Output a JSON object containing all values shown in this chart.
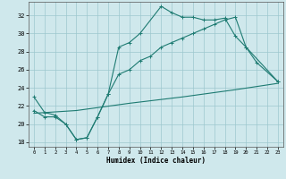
{
  "xlabel": "Humidex (Indice chaleur)",
  "xlim": [
    -0.5,
    23.5
  ],
  "ylim": [
    17.5,
    33.5
  ],
  "yticks": [
    18,
    20,
    22,
    24,
    26,
    28,
    30,
    32
  ],
  "xticks": [
    0,
    1,
    2,
    3,
    4,
    5,
    6,
    7,
    8,
    9,
    10,
    11,
    12,
    13,
    14,
    15,
    16,
    17,
    18,
    19,
    20,
    21,
    22,
    23
  ],
  "bg_color": "#cfe8ec",
  "line_color": "#1e7b72",
  "grid_color": "#9dc8ce",
  "line1_x": [
    0,
    1,
    2,
    3,
    4,
    5,
    6,
    7,
    8,
    9,
    10,
    12,
    13,
    14,
    15,
    16,
    17,
    18,
    19,
    20,
    21,
    23
  ],
  "line1_y": [
    23,
    21.3,
    21.0,
    20.0,
    18.3,
    18.5,
    20.8,
    23.3,
    28.5,
    29.0,
    30.0,
    33.0,
    32.3,
    31.8,
    31.8,
    31.5,
    31.5,
    31.7,
    29.7,
    28.5,
    26.8,
    24.7
  ],
  "line2_x": [
    0,
    1,
    2,
    3,
    4,
    5,
    6,
    7,
    8,
    9,
    10,
    11,
    12,
    13,
    14,
    15,
    16,
    17,
    18,
    19,
    20,
    23
  ],
  "line2_y": [
    21.5,
    20.8,
    20.8,
    20.0,
    18.3,
    18.5,
    20.8,
    23.3,
    25.5,
    26.0,
    27.0,
    27.5,
    28.5,
    29.0,
    29.5,
    30.0,
    30.5,
    31.0,
    31.5,
    31.8,
    28.5,
    24.7
  ],
  "line3_x": [
    0,
    4,
    9,
    14,
    19,
    23
  ],
  "line3_y": [
    21.2,
    21.5,
    22.3,
    23.0,
    23.8,
    24.5
  ]
}
